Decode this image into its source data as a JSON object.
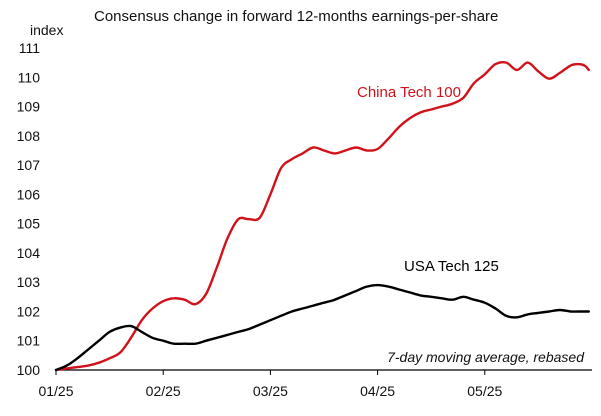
{
  "chart_data": {
    "type": "line",
    "title": "Consensus change in forward 12-months earnings-per-share",
    "ylabel": "index",
    "xlabel": "",
    "ylim": [
      100,
      111
    ],
    "yticks": [
      100,
      101,
      102,
      103,
      104,
      105,
      106,
      107,
      108,
      109,
      110,
      111
    ],
    "xlim": [
      0,
      5.0
    ],
    "xtick_labels": [
      "01/25",
      "02/25",
      "03/25",
      "04/25",
      "05/25"
    ],
    "grid": false,
    "annotation": "7-day moving average, rebased",
    "series": [
      {
        "name": "China Tech 100",
        "color": "#d0121b",
        "x": [
          0.0,
          0.1,
          0.2,
          0.3,
          0.4,
          0.5,
          0.6,
          0.7,
          0.8,
          0.9,
          1.0,
          1.1,
          1.2,
          1.3,
          1.4,
          1.5,
          1.6,
          1.7,
          1.8,
          1.9,
          2.0,
          2.1,
          2.2,
          2.3,
          2.4,
          2.5,
          2.6,
          2.7,
          2.8,
          2.9,
          3.0,
          3.1,
          3.2,
          3.3,
          3.4,
          3.5,
          3.6,
          3.7,
          3.8,
          3.9,
          4.0,
          4.1,
          4.2,
          4.3,
          4.4,
          4.5,
          4.6,
          4.7,
          4.8,
          4.87,
          4.93,
          4.97
        ],
        "y": [
          100.0,
          100.05,
          100.1,
          100.15,
          100.25,
          100.4,
          100.6,
          101.1,
          101.7,
          102.1,
          102.35,
          102.45,
          102.4,
          102.25,
          102.6,
          103.5,
          104.5,
          105.15,
          105.15,
          105.2,
          106.0,
          106.9,
          107.2,
          107.4,
          107.6,
          107.5,
          107.4,
          107.5,
          107.6,
          107.5,
          107.55,
          107.9,
          108.3,
          108.6,
          108.8,
          108.9,
          109.0,
          109.1,
          109.3,
          109.8,
          110.1,
          110.45,
          110.5,
          110.25,
          110.5,
          110.2,
          109.95,
          110.15,
          110.4,
          110.45,
          110.4,
          110.25
        ],
        "label_position": "upper-middle"
      },
      {
        "name": "USA Tech 125",
        "color": "#000000",
        "x": [
          0.0,
          0.1,
          0.2,
          0.3,
          0.4,
          0.5,
          0.6,
          0.7,
          0.8,
          0.9,
          1.0,
          1.1,
          1.2,
          1.3,
          1.4,
          1.5,
          1.6,
          1.7,
          1.8,
          1.9,
          2.0,
          2.1,
          2.2,
          2.3,
          2.4,
          2.5,
          2.6,
          2.7,
          2.8,
          2.9,
          3.0,
          3.1,
          3.2,
          3.3,
          3.4,
          3.5,
          3.6,
          3.7,
          3.8,
          3.9,
          4.0,
          4.1,
          4.2,
          4.3,
          4.4,
          4.5,
          4.6,
          4.7,
          4.8,
          4.87,
          4.93,
          4.97
        ],
        "y": [
          100.0,
          100.15,
          100.4,
          100.7,
          101.0,
          101.3,
          101.45,
          101.5,
          101.3,
          101.1,
          101.0,
          100.9,
          100.9,
          100.9,
          101.0,
          101.1,
          101.2,
          101.3,
          101.4,
          101.55,
          101.7,
          101.85,
          102.0,
          102.1,
          102.2,
          102.3,
          102.4,
          102.55,
          102.7,
          102.85,
          102.9,
          102.85,
          102.75,
          102.65,
          102.55,
          102.5,
          102.45,
          102.4,
          102.5,
          102.4,
          102.3,
          102.1,
          101.85,
          101.8,
          101.9,
          101.95,
          102.0,
          102.05,
          102.0,
          102.0,
          102.0,
          102.0
        ],
        "label_position": "right-middle"
      }
    ]
  }
}
